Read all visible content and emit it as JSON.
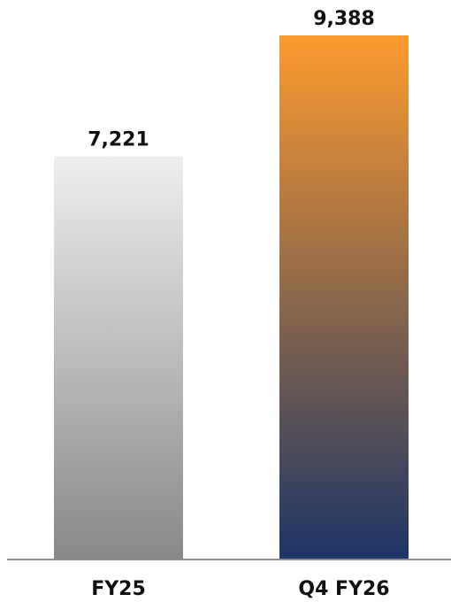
{
  "chart_data": {
    "type": "bar",
    "categories": [
      "FY25",
      "Q4 FY26"
    ],
    "values": [
      7221,
      9388
    ],
    "data_labels": [
      "7,221",
      "9,388"
    ],
    "title": "",
    "xlabel": "",
    "ylabel": "",
    "ylim": [
      0,
      9388
    ],
    "grid": false,
    "legend": "none",
    "colors": {
      "bar_0": {
        "top": "#eeeeee",
        "bottom": "#888888"
      },
      "bar_1": {
        "top": "#fd9a2f",
        "bottom": "#1c3566"
      },
      "baseline": "#8c8c8c"
    }
  }
}
